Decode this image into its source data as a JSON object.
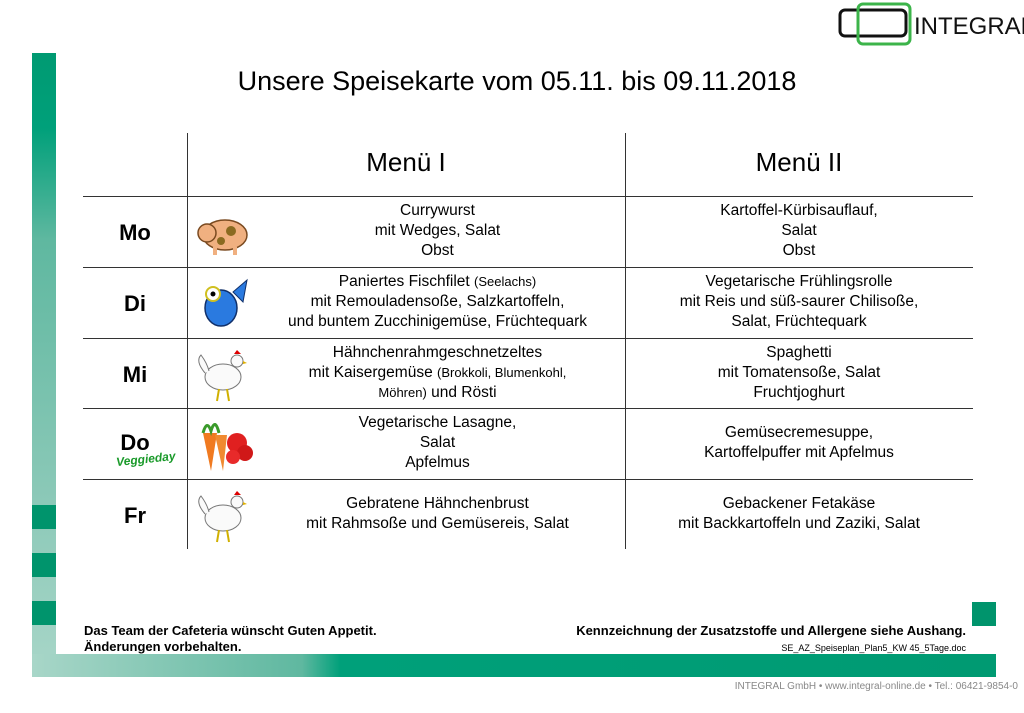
{
  "brand": {
    "name": "INTEGRAL",
    "green": "#00946c",
    "logo_green": "#3cb44a"
  },
  "title": "Unsere Speisekarte vom 05.11. bis 09.11.2018",
  "headers": [
    "Menü I",
    "Menü II"
  ],
  "days": [
    {
      "day": "Mo",
      "icon": "pig-icon",
      "menu1": [
        [
          {
            "t": "Currywurst"
          }
        ],
        [
          {
            "t": "mit Wedges, Salat"
          }
        ],
        [
          {
            "t": "Obst"
          }
        ]
      ],
      "menu2": [
        [
          {
            "t": "Kartoffel-Kürbisauflauf,"
          }
        ],
        [
          {
            "t": "Salat"
          }
        ],
        [
          {
            "t": "Obst"
          }
        ]
      ]
    },
    {
      "day": "Di",
      "icon": "fish-icon",
      "menu1": [
        [
          {
            "t": "Paniertes Fischfilet "
          },
          {
            "t": "(Seelachs)",
            "s": 1
          }
        ],
        [
          {
            "t": "mit Remouladensoße, Salzkartoffeln,"
          }
        ],
        [
          {
            "t": "und buntem Zucchinigemüse, Früchtequark"
          }
        ]
      ],
      "menu2": [
        [
          {
            "t": "Vegetarische Frühlingsrolle"
          }
        ],
        [
          {
            "t": "mit Reis und süß-saurer Chilisoße,"
          }
        ],
        [
          {
            "t": "Salat, Früchtequark"
          }
        ]
      ]
    },
    {
      "day": "Mi",
      "icon": "chicken-icon",
      "menu1": [
        [
          {
            "t": "Hähnchenrahmgeschnetzeltes"
          }
        ],
        [
          {
            "t": "mit Kaisergemüse "
          },
          {
            "t": "(Brokkoli, Blumenkohl,",
            "s": 1
          }
        ],
        [
          {
            "t": "Möhren)",
            "s": 1
          },
          {
            "t": " und Rösti"
          }
        ]
      ],
      "menu2": [
        [
          {
            "t": "Spaghetti"
          }
        ],
        [
          {
            "t": "mit Tomatensoße, Salat"
          }
        ],
        [
          {
            "t": "Fruchtjoghurt"
          }
        ]
      ]
    },
    {
      "day": "Do",
      "icon": "vegetables-icon",
      "badge": "Veggieday",
      "menu1": [
        [
          {
            "t": "Vegetarische Lasagne,"
          }
        ],
        [
          {
            "t": "Salat"
          }
        ],
        [
          {
            "t": "Apfelmus"
          }
        ]
      ],
      "menu2": [
        [
          {
            "t": "Gemüsecremesuppe,"
          }
        ],
        [
          {
            "t": "Kartoffelpuffer mit Apfelmus"
          }
        ]
      ]
    },
    {
      "day": "Fr",
      "icon": "chicken-icon",
      "menu1": [
        [
          {
            "t": "Gebratene Hähnchenbrust"
          }
        ],
        [
          {
            "t": "mit Rahmsoße und Gemüsereis, Salat"
          }
        ]
      ],
      "menu2": [
        [
          {
            "t": "Gebackener Fetakäse"
          }
        ],
        [
          {
            "t": "mit Backkartoffeln und Zaziki, Salat"
          }
        ]
      ]
    }
  ],
  "footer": {
    "left1": "Das Team der Cafeteria wünscht Guten Appetit.",
    "left2": "Änderungen vorbehalten.",
    "right": "Kennzeichnung der Zusatzstoffe und Allergene siehe Aushang.",
    "doc": "SE_AZ_Speiseplan_Plan5_KW 45_5Tage.doc",
    "address": "INTEGRAL GmbH • www.integral-online.de • Tel.: 06421-9854-0"
  }
}
